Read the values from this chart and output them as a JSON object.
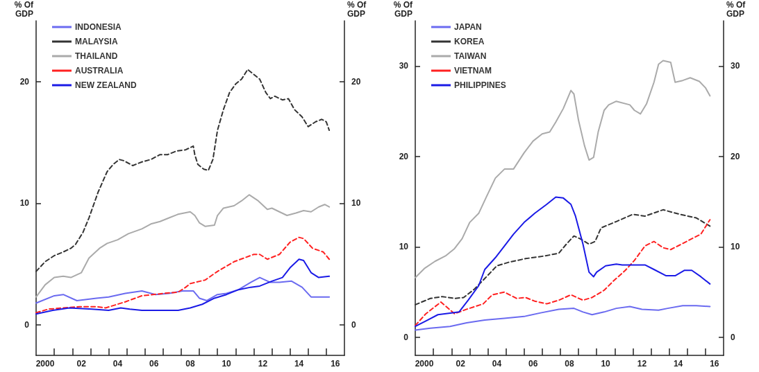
{
  "chart_data": [
    {
      "type": "line",
      "ylabel": "% Of GDP",
      "y2label": "% Of GDP",
      "xlim": [
        "2000-01",
        "2017-01"
      ],
      "xticks": [
        {
          "value": "2001-01",
          "label": null
        },
        {
          "value": "2002-01",
          "label": null
        },
        {
          "value": "2003-01",
          "label": null
        },
        {
          "value": "2004-01",
          "label": null
        },
        {
          "value": "2005-01",
          "label": null
        },
        {
          "value": "2006-01",
          "label": null
        },
        {
          "value": "2007-01",
          "label": null
        },
        {
          "value": "2008-01",
          "label": null
        },
        {
          "value": "2009-01",
          "label": null
        },
        {
          "value": "2010-01",
          "label": null
        },
        {
          "value": "2011-01",
          "label": null
        },
        {
          "value": "2012-01",
          "label": null
        },
        {
          "value": "2013-01",
          "label": null
        },
        {
          "value": "2014-01",
          "label": null
        },
        {
          "value": "2015-01",
          "label": null
        },
        {
          "value": "2016-01",
          "label": null
        },
        {
          "value": "2000-07",
          "label": "2000"
        },
        {
          "value": "2002-07",
          "label": "02"
        },
        {
          "value": "2004-07",
          "label": "04"
        },
        {
          "value": "2006-07",
          "label": "06"
        },
        {
          "value": "2008-07",
          "label": "08"
        },
        {
          "value": "2010-07",
          "label": "10"
        },
        {
          "value": "2012-07",
          "label": "12"
        },
        {
          "value": "2014-07",
          "label": "14"
        },
        {
          "value": "2016-07",
          "label": "16"
        }
      ],
      "ylim": [
        -2.5,
        25
      ],
      "yticks": [
        0,
        10,
        20
      ],
      "y2lim": [
        -2.5,
        25
      ],
      "y2ticks": [
        0,
        10,
        20
      ],
      "legend": "top left",
      "marker": "none",
      "series": [
        {
          "name": "INDONESIA",
          "color": "#6a6af0",
          "line_style": "solid",
          "x": [
            "2000-01",
            "2001-01",
            "2001-07",
            "2002-04",
            "2003-05",
            "2004-01",
            "2004-12",
            "2005-11",
            "2006-08",
            "2007-05",
            "2008-02",
            "2008-09",
            "2009-01",
            "2009-06",
            "2010-01",
            "2010-07",
            "2011-03",
            "2011-11",
            "2012-05",
            "2012-12",
            "2013-06",
            "2014-02",
            "2014-09",
            "2015-03",
            "2016-03"
          ],
          "values": [
            1.8,
            2.4,
            2.5,
            2.0,
            2.2,
            2.3,
            2.6,
            2.8,
            2.5,
            2.6,
            2.8,
            2.8,
            2.2,
            2.0,
            2.5,
            2.6,
            2.9,
            3.5,
            3.9,
            3.5,
            3.5,
            3.6,
            3.1,
            2.3,
            2.3
          ]
        },
        {
          "name": "MALAYSIA",
          "color": "#333333",
          "line_style": "dashed",
          "x": [
            "2000-01",
            "2000-07",
            "2001-01",
            "2001-07",
            "2001-12",
            "2002-03",
            "2002-08",
            "2002-12",
            "2003-06",
            "2003-12",
            "2004-04",
            "2004-08",
            "2004-11",
            "2005-05",
            "2005-11",
            "2006-05",
            "2006-11",
            "2007-04",
            "2007-10",
            "2008-04",
            "2008-09",
            "2008-10",
            "2008-12",
            "2009-04",
            "2009-07",
            "2009-10",
            "2010-01",
            "2010-05",
            "2010-09",
            "2011-01",
            "2011-05",
            "2011-09",
            "2012-01",
            "2012-05",
            "2012-09",
            "2012-12",
            "2013-03",
            "2013-08",
            "2013-12",
            "2014-04",
            "2014-09",
            "2015-01",
            "2015-06",
            "2015-10",
            "2016-01",
            "2016-03"
          ],
          "values": [
            4.4,
            5.2,
            5.7,
            6.0,
            6.3,
            6.6,
            7.6,
            8.8,
            10.9,
            12.6,
            13.2,
            13.6,
            13.5,
            13.1,
            13.4,
            13.6,
            14.0,
            14.0,
            14.3,
            14.4,
            14.7,
            14.0,
            13.2,
            12.8,
            12.7,
            13.6,
            16.0,
            17.7,
            19.1,
            19.8,
            20.2,
            21.0,
            20.6,
            20.2,
            19.1,
            18.6,
            18.8,
            18.5,
            18.6,
            17.7,
            17.1,
            16.3,
            16.7,
            16.9,
            16.7,
            16.0
          ]
        },
        {
          "name": "THAILAND",
          "color": "#aaaaaa",
          "line_style": "solid",
          "x": [
            "2000-01",
            "2000-07",
            "2001-01",
            "2001-07",
            "2001-12",
            "2002-07",
            "2002-12",
            "2003-07",
            "2003-12",
            "2004-07",
            "2005-02",
            "2005-11",
            "2006-05",
            "2006-11",
            "2007-05",
            "2007-11",
            "2008-07",
            "2008-10",
            "2009-01",
            "2009-05",
            "2009-11",
            "2010-01",
            "2010-05",
            "2010-12",
            "2011-05",
            "2011-10",
            "2012-04",
            "2012-10",
            "2013-01",
            "2013-06",
            "2013-11",
            "2014-05",
            "2014-10",
            "2015-03",
            "2015-08",
            "2015-12",
            "2016-03"
          ],
          "values": [
            2.3,
            3.3,
            3.9,
            4.0,
            3.9,
            4.3,
            5.5,
            6.3,
            6.7,
            7.0,
            7.5,
            7.9,
            8.3,
            8.5,
            8.8,
            9.1,
            9.3,
            9.0,
            8.4,
            8.1,
            8.2,
            9.0,
            9.6,
            9.8,
            10.2,
            10.7,
            10.2,
            9.5,
            9.6,
            9.3,
            9.0,
            9.2,
            9.4,
            9.3,
            9.7,
            9.9,
            9.7
          ]
        },
        {
          "name": "AUSTRALIA",
          "color": "#ff2020",
          "line_style": "dashed",
          "x": [
            "2000-01",
            "2000-09",
            "2001-07",
            "2002-06",
            "2003-05",
            "2003-11",
            "2004-12",
            "2005-11",
            "2007-02",
            "2007-11",
            "2008-04",
            "2008-07",
            "2009-05",
            "2010-01",
            "2010-12",
            "2012-01",
            "2012-05",
            "2012-10",
            "2013-06",
            "2014-01",
            "2014-07",
            "2014-10",
            "2015-04",
            "2015-11",
            "2016-03"
          ],
          "values": [
            1.0,
            1.3,
            1.4,
            1.5,
            1.5,
            1.4,
            1.9,
            2.4,
            2.6,
            2.7,
            3.1,
            3.4,
            3.7,
            4.4,
            5.2,
            5.8,
            5.8,
            5.4,
            5.8,
            6.8,
            7.2,
            7.1,
            6.3,
            6.0,
            5.4
          ]
        },
        {
          "name": "NEW ZEALAND",
          "color": "#1a1ae6",
          "line_style": "solid",
          "x": [
            "2000-01",
            "2000-12",
            "2001-11",
            "2003-02",
            "2004-01",
            "2004-09",
            "2005-03",
            "2005-11",
            "2007-02",
            "2007-11",
            "2008-07",
            "2009-03",
            "2009-11",
            "2010-07",
            "2011-03",
            "2011-11",
            "2012-05",
            "2013-01",
            "2013-08",
            "2014-01",
            "2014-07",
            "2014-10",
            "2015-03",
            "2015-08",
            "2016-03"
          ],
          "values": [
            0.9,
            1.2,
            1.4,
            1.3,
            1.2,
            1.4,
            1.3,
            1.2,
            1.2,
            1.2,
            1.4,
            1.7,
            2.2,
            2.5,
            2.9,
            3.1,
            3.2,
            3.6,
            3.9,
            4.7,
            5.4,
            5.3,
            4.3,
            3.9,
            4.0
          ]
        }
      ]
    },
    {
      "type": "line",
      "ylabel": "% Of GDP",
      "y2label": "% Of GDP",
      "xlim": [
        "2000-01",
        "2017-01"
      ],
      "xticks": [
        {
          "value": "2001-01",
          "label": null
        },
        {
          "value": "2002-01",
          "label": null
        },
        {
          "value": "2003-01",
          "label": null
        },
        {
          "value": "2004-01",
          "label": null
        },
        {
          "value": "2005-01",
          "label": null
        },
        {
          "value": "2006-01",
          "label": null
        },
        {
          "value": "2007-01",
          "label": null
        },
        {
          "value": "2008-01",
          "label": null
        },
        {
          "value": "2009-01",
          "label": null
        },
        {
          "value": "2010-01",
          "label": null
        },
        {
          "value": "2011-01",
          "label": null
        },
        {
          "value": "2012-01",
          "label": null
        },
        {
          "value": "2013-01",
          "label": null
        },
        {
          "value": "2014-01",
          "label": null
        },
        {
          "value": "2015-01",
          "label": null
        },
        {
          "value": "2016-01",
          "label": null
        },
        {
          "value": "2000-07",
          "label": "2000"
        },
        {
          "value": "2002-07",
          "label": "02"
        },
        {
          "value": "2004-07",
          "label": "04"
        },
        {
          "value": "2006-07",
          "label": "06"
        },
        {
          "value": "2008-07",
          "label": "08"
        },
        {
          "value": "2010-07",
          "label": "10"
        },
        {
          "value": "2012-07",
          "label": "12"
        },
        {
          "value": "2014-07",
          "label": "14"
        },
        {
          "value": "2016-07",
          "label": "16"
        }
      ],
      "ylim": [
        -2,
        35
      ],
      "yticks": [
        0,
        10,
        20,
        30
      ],
      "y2lim": [
        -2,
        35
      ],
      "y2ticks": [
        0,
        10,
        20,
        30
      ],
      "legend": "top left",
      "marker": "none",
      "series": [
        {
          "name": "JAPAN",
          "color": "#6a6af0",
          "line_style": "solid",
          "x": [
            "2000-01",
            "2000-11",
            "2001-12",
            "2002-11",
            "2003-11",
            "2004-12",
            "2006-01",
            "2006-12",
            "2007-12",
            "2008-10",
            "2009-04",
            "2009-10",
            "2010-06",
            "2011-02",
            "2011-11",
            "2012-07",
            "2013-06",
            "2013-12",
            "2014-10",
            "2015-07",
            "2016-04"
          ],
          "values": [
            0.8,
            1.0,
            1.2,
            1.6,
            1.9,
            2.1,
            2.3,
            2.7,
            3.1,
            3.2,
            2.8,
            2.5,
            2.8,
            3.2,
            3.4,
            3.1,
            3.0,
            3.2,
            3.5,
            3.5,
            3.4
          ]
        },
        {
          "name": "KOREA",
          "color": "#333333",
          "line_style": "dashed",
          "x": [
            "2000-01",
            "2000-11",
            "2001-07",
            "2002-03",
            "2002-09",
            "2003-04",
            "2003-11",
            "2004-07",
            "2005-03",
            "2006-02",
            "2007-03",
            "2007-12",
            "2008-05",
            "2008-10",
            "2009-02",
            "2009-08",
            "2009-12",
            "2010-04",
            "2011-02",
            "2012-01",
            "2012-09",
            "2013-09",
            "2014-08",
            "2015-07",
            "2016-04"
          ],
          "values": [
            3.6,
            4.3,
            4.5,
            4.3,
            4.4,
            5.3,
            6.5,
            7.9,
            8.3,
            8.7,
            9.0,
            9.3,
            10.3,
            11.2,
            10.9,
            10.3,
            10.6,
            12.1,
            12.8,
            13.6,
            13.4,
            14.1,
            13.6,
            13.2,
            12.3
          ]
        },
        {
          "name": "TAIWAN",
          "color": "#aaaaaa",
          "line_style": "solid",
          "x": [
            "2000-01",
            "2000-07",
            "2001-02",
            "2001-09",
            "2002-03",
            "2002-08",
            "2003-01",
            "2003-07",
            "2003-12",
            "2004-06",
            "2004-12",
            "2005-06",
            "2006-01",
            "2006-07",
            "2007-01",
            "2007-06",
            "2007-10",
            "2008-03",
            "2008-08",
            "2008-10",
            "2009-01",
            "2009-05",
            "2009-08",
            "2009-11",
            "2010-02",
            "2010-06",
            "2010-09",
            "2011-02",
            "2011-11",
            "2012-02",
            "2012-06",
            "2012-10",
            "2013-03",
            "2013-06",
            "2013-09",
            "2014-02",
            "2014-05",
            "2014-10",
            "2015-03",
            "2015-09",
            "2016-01",
            "2016-04"
          ],
          "values": [
            6.6,
            7.6,
            8.4,
            9.0,
            9.8,
            10.9,
            12.7,
            13.7,
            15.5,
            17.6,
            18.6,
            18.6,
            20.4,
            21.7,
            22.5,
            22.7,
            23.8,
            25.3,
            27.3,
            26.9,
            24.0,
            21.2,
            19.6,
            19.9,
            22.7,
            25.1,
            25.7,
            26.1,
            25.7,
            25.1,
            24.7,
            25.8,
            28.2,
            30.2,
            30.6,
            30.4,
            28.2,
            28.4,
            28.7,
            28.3,
            27.6,
            26.7
          ]
        },
        {
          "name": "VIETNAM",
          "color": "#ff2020",
          "line_style": "dashed",
          "x": [
            "2000-01",
            "2000-08",
            "2001-06",
            "2002-03",
            "2002-11",
            "2003-10",
            "2004-04",
            "2004-12",
            "2005-08",
            "2006-02",
            "2006-08",
            "2007-04",
            "2007-12",
            "2008-08",
            "2009-04",
            "2009-10",
            "2010-06",
            "2010-12",
            "2011-08",
            "2012-02",
            "2012-09",
            "2013-03",
            "2013-09",
            "2014-02",
            "2014-08",
            "2015-04",
            "2015-10",
            "2016-04"
          ],
          "values": [
            1.3,
            2.6,
            3.9,
            2.6,
            3.1,
            3.7,
            4.7,
            5.0,
            4.3,
            4.4,
            4.0,
            3.7,
            4.1,
            4.7,
            4.1,
            4.4,
            5.2,
            6.2,
            7.4,
            8.5,
            10.1,
            10.6,
            9.9,
            9.7,
            10.2,
            10.9,
            11.4,
            13.0
          ]
        },
        {
          "name": "PHILIPPINES",
          "color": "#1a1ae6",
          "line_style": "solid",
          "x": [
            "2000-01",
            "2000-08",
            "2001-04",
            "2002-01",
            "2002-06",
            "2002-12",
            "2003-07",
            "2003-11",
            "2004-06",
            "2004-12",
            "2005-06",
            "2006-01",
            "2006-08",
            "2007-04",
            "2007-10",
            "2008-03",
            "2008-08",
            "2008-11",
            "2009-04",
            "2009-08",
            "2009-11",
            "2010-01",
            "2010-07",
            "2011-02",
            "2011-06",
            "2012-01",
            "2012-09",
            "2013-03",
            "2013-11",
            "2014-05",
            "2014-11",
            "2015-04",
            "2015-10",
            "2016-04"
          ],
          "values": [
            1.2,
            1.8,
            2.5,
            2.7,
            2.8,
            4.1,
            5.7,
            7.5,
            8.8,
            10.1,
            11.4,
            12.7,
            13.7,
            14.7,
            15.5,
            15.4,
            14.7,
            13.4,
            10.3,
            7.2,
            6.7,
            7.2,
            7.9,
            8.1,
            8.0,
            8.0,
            8.0,
            7.5,
            6.8,
            6.8,
            7.4,
            7.4,
            6.7,
            5.9
          ]
        }
      ]
    }
  ]
}
